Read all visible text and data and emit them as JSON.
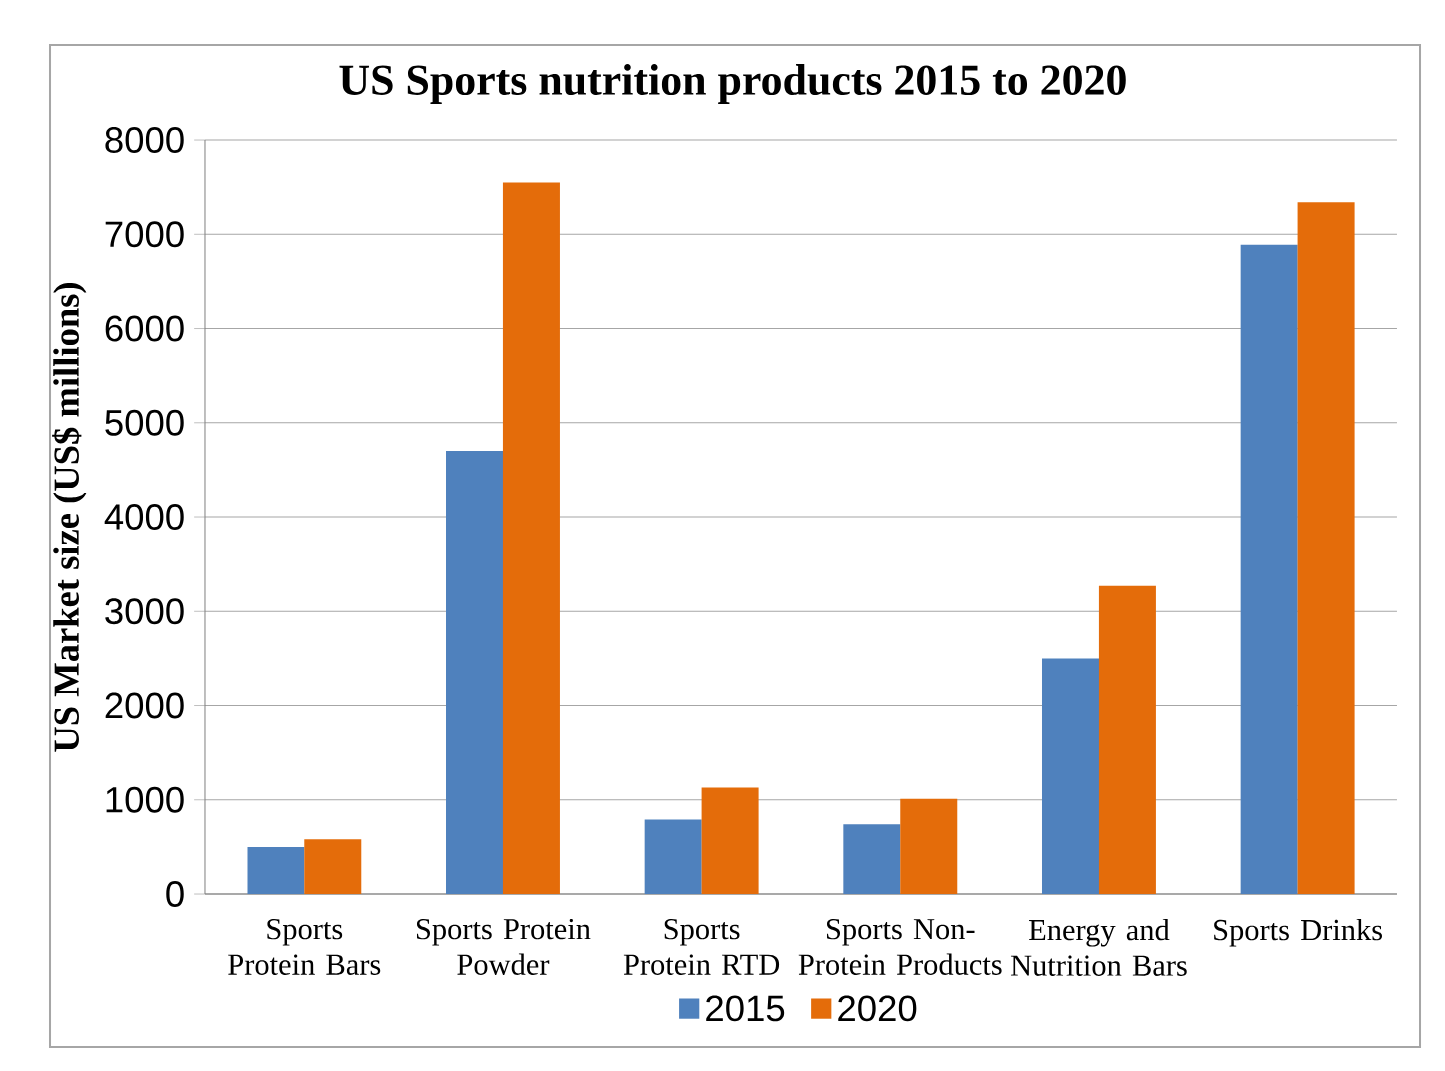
{
  "chart_data": {
    "type": "bar",
    "title": "US Sports nutrition products 2015 to 2020",
    "ylabel": "US Market size (US$ millions)",
    "categories": [
      "Sports Protein Bars",
      "Sports Protein Powder",
      "Sports Protein RTD",
      "Sports Non-Protein Products",
      "Energy and Nutrition Bars",
      "Sports Drinks"
    ],
    "series": [
      {
        "name": "2015",
        "color": "#4f81bd",
        "values": [
          500,
          4700,
          790,
          740,
          2500,
          6890
        ]
      },
      {
        "name": "2020",
        "color": "#e46c0a",
        "values": [
          580,
          7550,
          1130,
          1010,
          3270,
          7340
        ]
      }
    ],
    "ylim": [
      0,
      8000
    ],
    "yticks": [
      0,
      1000,
      2000,
      3000,
      4000,
      5000,
      6000,
      7000,
      8000
    ],
    "grid": "y",
    "legend": "bottom"
  }
}
